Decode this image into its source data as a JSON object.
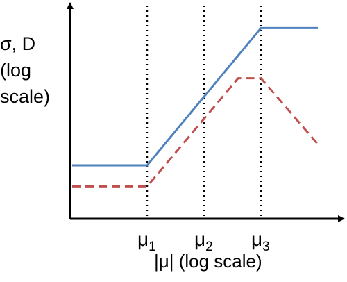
{
  "chart_data": {
    "type": "line",
    "xlabel": "|μ| (log scale)",
    "ylabel_lines": [
      "σ, D",
      "(log",
      "scale)"
    ],
    "x_ticks": [
      {
        "label": "μ",
        "sub": "1",
        "x": 1
      },
      {
        "label": "μ",
        "sub": "2",
        "x": 2
      },
      {
        "label": "μ",
        "sub": "3",
        "x": 3
      }
    ],
    "xlim": [
      0,
      4
    ],
    "ylim": [
      0,
      4
    ],
    "grid": false,
    "legend": "none",
    "series": [
      {
        "color": "#4f81bd",
        "style": "solid",
        "points": [
          [
            0,
            1
          ],
          [
            1,
            1
          ],
          [
            3,
            3.6
          ],
          [
            4,
            3.6
          ]
        ]
      },
      {
        "color": "#c0504d",
        "style": "dashed",
        "points": [
          [
            0,
            0.6
          ],
          [
            1,
            0.6
          ],
          [
            2.6,
            2.65
          ],
          [
            3,
            2.65
          ],
          [
            4,
            1.4
          ]
        ]
      }
    ]
  }
}
